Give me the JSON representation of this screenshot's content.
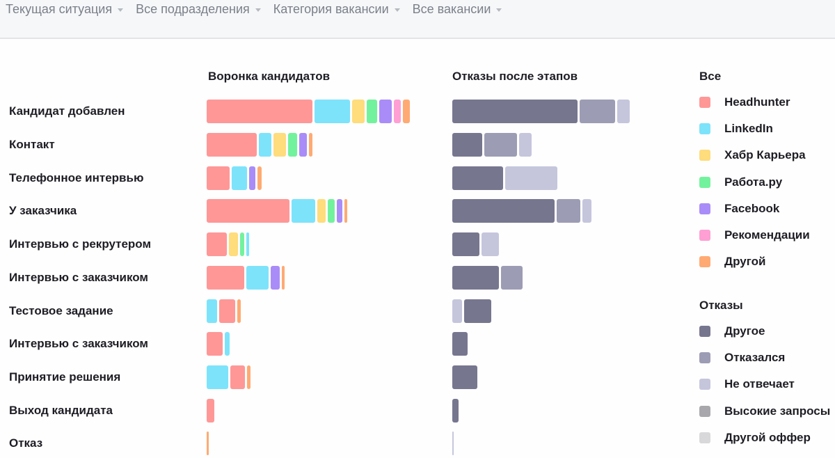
{
  "filters": [
    {
      "label": "Текущая ситуация",
      "icon": "caret-down-icon"
    },
    {
      "label": "Все подразделения",
      "icon": "caret-down-icon"
    },
    {
      "label": "Категория вакансии",
      "icon": "caret-down-icon"
    },
    {
      "label": "Все вакансии",
      "icon": "caret-down-icon"
    }
  ],
  "funnel_title": "Воронка кандидатов",
  "rejections_title": "Отказы после этапов",
  "stages": [
    "Кандидат добавлен",
    "Контакт",
    "Телефонное интервью",
    "У заказчика",
    "Интервью с рекрутером",
    "Интервью с заказчиком",
    "Тестовое задание",
    "Интервью с заказчиком",
    "Принятие решения",
    "Выход кандидата",
    "Отказ"
  ],
  "legend": {
    "sources_title": "Все",
    "sources": [
      {
        "label": "Headhunter",
        "color": "#ff9797"
      },
      {
        "label": "LinkedIn",
        "color": "#7de3fb"
      },
      {
        "label": "Хабр Карьера",
        "color": "#ffdc7c"
      },
      {
        "label": "Работа.ру",
        "color": "#73f29d"
      },
      {
        "label": "Facebook",
        "color": "#a98cf7"
      },
      {
        "label": "Рекомендации",
        "color": "#ff9fd3"
      },
      {
        "label": "Другой",
        "color": "#ffaa73"
      }
    ],
    "rejections_title": "Отказы",
    "rejections": [
      {
        "label": "Другое",
        "color": "#76768f"
      },
      {
        "label": "Отказался",
        "color": "#9c9cb4"
      },
      {
        "label": "Не отвечает",
        "color": "#c5c6dc"
      },
      {
        "label": "Высокие запросы",
        "color": "#a8a8ac"
      },
      {
        "label": "Другой оффер",
        "color": "#d8d8da"
      }
    ]
  },
  "chart_data": [
    {
      "type": "bar",
      "orientation": "horizontal",
      "stacked": true,
      "title": "Воронка кандидатов",
      "categories": [
        "Кандидат добавлен",
        "Контакт",
        "Телефонное интервью",
        "У заказчика",
        "Интервью с рекрутером",
        "Интервью с заказчиком",
        "Тестовое задание",
        "Интервью с заказчиком",
        "Принятие решения",
        "Выход кандидата",
        "Отказ"
      ],
      "unit": "relative bar length (px)",
      "rows": [
        [
          {
            "s": "Headhunter",
            "v": 152
          },
          {
            "s": "LinkedIn",
            "v": 51
          },
          {
            "s": "Хабр Карьера",
            "v": 18
          },
          {
            "s": "Работа.ру",
            "v": 15
          },
          {
            "s": "Facebook",
            "v": 18
          },
          {
            "s": "Рекомендации",
            "v": 10
          },
          {
            "s": "Другой",
            "v": 10
          }
        ],
        [
          {
            "s": "Headhunter",
            "v": 72
          },
          {
            "s": "LinkedIn",
            "v": 18
          },
          {
            "s": "Хабр Карьера",
            "v": 18
          },
          {
            "s": "Работа.ру",
            "v": 13
          },
          {
            "s": "Facebook",
            "v": 11
          },
          {
            "s": "Другой",
            "v": 5
          }
        ],
        [
          {
            "s": "Headhunter",
            "v": 33
          },
          {
            "s": "LinkedIn",
            "v": 22
          },
          {
            "s": "Facebook",
            "v": 9
          },
          {
            "s": "Другой",
            "v": 6
          }
        ],
        [
          {
            "s": "Headhunter",
            "v": 119
          },
          {
            "s": "LinkedIn",
            "v": 34
          },
          {
            "s": "Хабр Карьера",
            "v": 12
          },
          {
            "s": "Работа.ру",
            "v": 10
          },
          {
            "s": "Facebook",
            "v": 8
          },
          {
            "s": "Другой",
            "v": 4
          }
        ],
        [
          {
            "s": "Headhunter",
            "v": 29
          },
          {
            "s": "Хабр Карьера",
            "v": 13
          },
          {
            "s": "Работа.ру",
            "v": 6
          },
          {
            "s": "LinkedIn",
            "v": 4
          }
        ],
        [
          {
            "s": "Headhunter",
            "v": 54
          },
          {
            "s": "LinkedIn",
            "v": 32
          },
          {
            "s": "Facebook",
            "v": 13
          },
          {
            "s": "Другой",
            "v": 4
          }
        ],
        [
          {
            "s": "LinkedIn",
            "v": 15
          },
          {
            "s": "Headhunter",
            "v": 23
          },
          {
            "s": "Другой",
            "v": 5
          }
        ],
        [
          {
            "s": "Headhunter",
            "v": 23
          },
          {
            "s": "LinkedIn",
            "v": 7
          }
        ],
        [
          {
            "s": "LinkedIn",
            "v": 31
          },
          {
            "s": "Headhunter",
            "v": 21
          },
          {
            "s": "Другой",
            "v": 5
          }
        ],
        [
          {
            "s": "Headhunter",
            "v": 11
          }
        ],
        [
          {
            "s": "Другой",
            "v": 3
          }
        ]
      ]
    },
    {
      "type": "bar",
      "orientation": "horizontal",
      "stacked": true,
      "title": "Отказы после этапов",
      "categories": [
        "Кандидат добавлен",
        "Контакт",
        "Телефонное интервью",
        "У заказчика",
        "Интервью с рекрутером",
        "Интервью с заказчиком",
        "Тестовое задание",
        "Интервью с заказчиком",
        "Принятие решения",
        "Выход кандидата",
        "Отказ"
      ],
      "unit": "relative bar length (px)",
      "rows": [
        [
          {
            "s": "Другое",
            "v": 180
          },
          {
            "s": "Отказался",
            "v": 51
          },
          {
            "s": "Не отвечает",
            "v": 18
          }
        ],
        [
          {
            "s": "Другое",
            "v": 43
          },
          {
            "s": "Отказался",
            "v": 47
          },
          {
            "s": "Не отвечает",
            "v": 18
          }
        ],
        [
          {
            "s": "Другое",
            "v": 73
          },
          {
            "s": "Не отвечает",
            "v": 75
          }
        ],
        [
          {
            "s": "Другое",
            "v": 147
          },
          {
            "s": "Отказался",
            "v": 34
          },
          {
            "s": "Не отвечает",
            "v": 13
          }
        ],
        [
          {
            "s": "Другое",
            "v": 39
          },
          {
            "s": "Не отвечает",
            "v": 25
          }
        ],
        [
          {
            "s": "Другое",
            "v": 67
          },
          {
            "s": "Отказался",
            "v": 31
          }
        ],
        [
          {
            "s": "Не отвечает",
            "v": 14
          },
          {
            "s": "Другое",
            "v": 39
          }
        ],
        [
          {
            "s": "Другое",
            "v": 22
          }
        ],
        [
          {
            "s": "Другое",
            "v": 36
          }
        ],
        [
          {
            "s": "Другое",
            "v": 9
          }
        ],
        [
          {
            "s": "Не отвечает",
            "v": 2
          }
        ]
      ]
    }
  ]
}
